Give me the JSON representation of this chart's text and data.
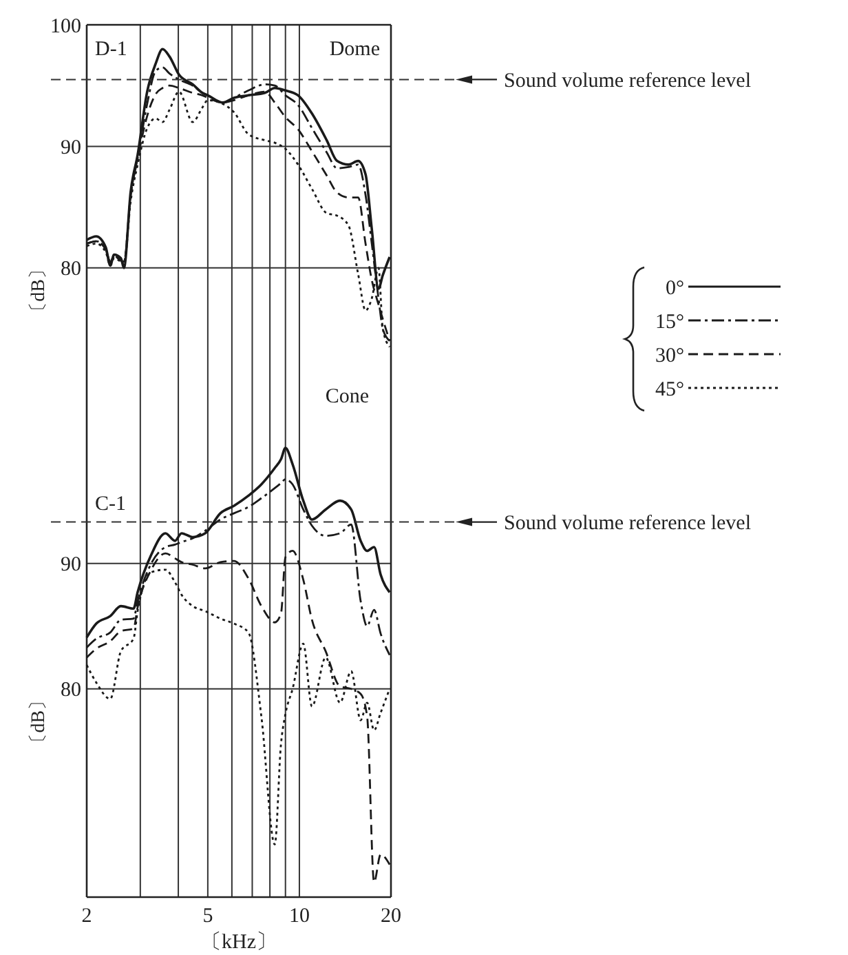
{
  "chart_data": [
    {
      "type": "line",
      "annotations": [
        "D-1",
        "Dome"
      ],
      "ylabel": "〔dB〕",
      "x": [
        2,
        2.15,
        2.31,
        2.39,
        2.46,
        2.59,
        2.65,
        2.79,
        2.94,
        3.16,
        3.37,
        3.55,
        3.74,
        4.02,
        4.46,
        4.8,
        5.0,
        5.6,
        6.1,
        6.8,
        7.7,
        8.3,
        9.0,
        9.9,
        11.0,
        12.3,
        13.3,
        14.5,
        15.6,
        16.5,
        17.3,
        18.2,
        18.8,
        19.8
      ],
      "series": [
        {
          "name": "0°",
          "color": "#1a1a1a",
          "line_style": "solid",
          "values": [
            82.3,
            82.6,
            81.7,
            80.2,
            81.1,
            80.8,
            80,
            86.3,
            89.3,
            94.5,
            96.8,
            98,
            97.4,
            95.9,
            95.1,
            94.4,
            94.2,
            93.6,
            94,
            94.2,
            94.4,
            94.8,
            94.6,
            94.2,
            92.7,
            90.5,
            88.8,
            88.5,
            88.8,
            87.7,
            83.2,
            78.3,
            79.4,
            80.9
          ]
        },
        {
          "name": "15°",
          "color": "#1a1a1a",
          "line_style": "dashdot",
          "values": [
            82,
            82.2,
            81.5,
            80.5,
            81,
            80.6,
            80.5,
            86,
            89,
            93.5,
            96.2,
            96.5,
            96,
            95.5,
            95,
            94.4,
            94.2,
            93.6,
            94,
            94.6,
            95.1,
            95,
            94.2,
            93.4,
            91.5,
            89.5,
            88.2,
            88.3,
            88.5,
            86,
            82,
            77.5,
            75,
            74
          ]
        },
        {
          "name": "30°",
          "color": "#1a1a1a",
          "line_style": "dashed",
          "values": [
            82,
            82.2,
            81.5,
            80.5,
            81,
            80.6,
            80.5,
            86,
            89,
            92.5,
            94.3,
            94.8,
            95,
            94.8,
            94.4,
            94.2,
            94,
            93.6,
            93.8,
            94.2,
            94.5,
            93.6,
            92.4,
            91.4,
            89.6,
            87.6,
            86.2,
            85.8,
            85.8,
            82,
            79,
            77,
            75.8,
            74
          ]
        },
        {
          "name": "45°",
          "color": "#1a1a1a",
          "line_style": "dotted",
          "values": [
            81.8,
            82,
            81.3,
            80.2,
            80.8,
            80.5,
            80.3,
            85.5,
            88.5,
            91.5,
            92.3,
            92,
            93,
            94.5,
            92,
            93.2,
            93.8,
            93.5,
            92.8,
            91,
            90.5,
            90.3,
            89.8,
            88.5,
            86.5,
            84.5,
            84.3,
            83.5,
            79.5,
            76.5,
            77.5,
            80,
            75,
            73.5
          ]
        }
      ],
      "xlim": [
        2,
        20
      ],
      "xticks": [
        2,
        {
          "value": 3,
          "label": null
        },
        {
          "value": 4,
          "label": null
        },
        5,
        {
          "value": 6,
          "label": null
        },
        {
          "value": 7,
          "label": null
        },
        {
          "value": 8,
          "label": null
        },
        {
          "value": 9,
          "label": null
        },
        10,
        20
      ],
      "ylim": [
        72,
        100
      ],
      "yticks": [
        80,
        90,
        100
      ],
      "log": "x",
      "grid": true,
      "tick_labels": "y",
      "legend": "right",
      "ref_lines": [
        {
          "axis": "y",
          "value": 95.5,
          "label": "Sound volume reference level",
          "line_style": "dashed",
          "color": "#333333"
        }
      ]
    },
    {
      "type": "line",
      "annotations": [
        "Cone",
        "C-1"
      ],
      "ylabel": "〔dB〕",
      "xlabel": "〔kHz〕",
      "x": [
        2,
        2.15,
        2.39,
        2.59,
        2.85,
        2.94,
        3.26,
        3.63,
        3.9,
        4.1,
        4.46,
        4.9,
        5.5,
        6.1,
        6.8,
        7.5,
        8.3,
        8.7,
        9.0,
        9.5,
        10.3,
        11,
        12.2,
        13.6,
        14.8,
        15.9,
        16.7,
        17.6,
        18.5,
        19.8
      ],
      "series": [
        {
          "color": "#1a1a1a",
          "line_style": "solid",
          "values": [
            84.1,
            85.2,
            85.8,
            86.6,
            86.4,
            87.7,
            90.7,
            92.4,
            91.8,
            92.4,
            92.1,
            92.4,
            94,
            94.6,
            95.4,
            96.3,
            97.6,
            98.3,
            99.2,
            97.9,
            95,
            93.5,
            94.3,
            95,
            94.3,
            91.8,
            91,
            91.3,
            89.1,
            87.7
          ]
        },
        {
          "color": "#1a1a1a",
          "line_style": "dashdot",
          "values": [
            83.3,
            84,
            84.5,
            85.5,
            85.6,
            87,
            90,
            91.3,
            91.5,
            91.7,
            92,
            92.6,
            93.5,
            94,
            94.5,
            95.2,
            96,
            96.4,
            96.7,
            96.3,
            94.3,
            93,
            92.2,
            92.4,
            93.1,
            87,
            85,
            86.3,
            84.4,
            82.7
          ]
        },
        {
          "color": "#1a1a1a",
          "line_style": "dashed",
          "values": [
            82.5,
            83.2,
            83.8,
            84.6,
            84.8,
            86.5,
            89.5,
            90.8,
            90.4,
            90.1,
            89.9,
            89.6,
            90.1,
            90.2,
            88.8,
            86.6,
            85.3,
            86,
            90.5,
            91,
            88.7,
            85.5,
            83,
            80.2,
            80,
            79.6,
            77.8,
            64.6,
            66.8,
            66
          ]
        },
        {
          "color": "#1a1a1a",
          "line_style": "dotted",
          "values": [
            81.9,
            80.5,
            79.2,
            83,
            84,
            86.2,
            89.3,
            89.5,
            88.5,
            87.5,
            86.6,
            86.2,
            85.6,
            85.2,
            84.5,
            77.8,
            67.6,
            75.6,
            78,
            80,
            83.6,
            78.6,
            82.5,
            78.9,
            81.4,
            77.5,
            78.9,
            76.7,
            78.1,
            80
          ]
        }
      ],
      "xlim": [
        2,
        20
      ],
      "xticks": [
        2,
        {
          "value": 3,
          "label": null
        },
        {
          "value": 4,
          "label": null
        },
        5,
        {
          "value": 6,
          "label": null
        },
        {
          "value": 7,
          "label": null
        },
        {
          "value": 8,
          "label": null
        },
        {
          "value": 9,
          "label": null
        },
        10,
        20
      ],
      "ylim": [
        63.4,
        105.8
      ],
      "yticks": [
        80,
        90
      ],
      "log": "x",
      "grid": true,
      "ref_lines": [
        {
          "axis": "y",
          "value": 93.3,
          "label": "Sound volume reference level",
          "line_style": "dashed",
          "color": "#333333"
        }
      ]
    }
  ]
}
